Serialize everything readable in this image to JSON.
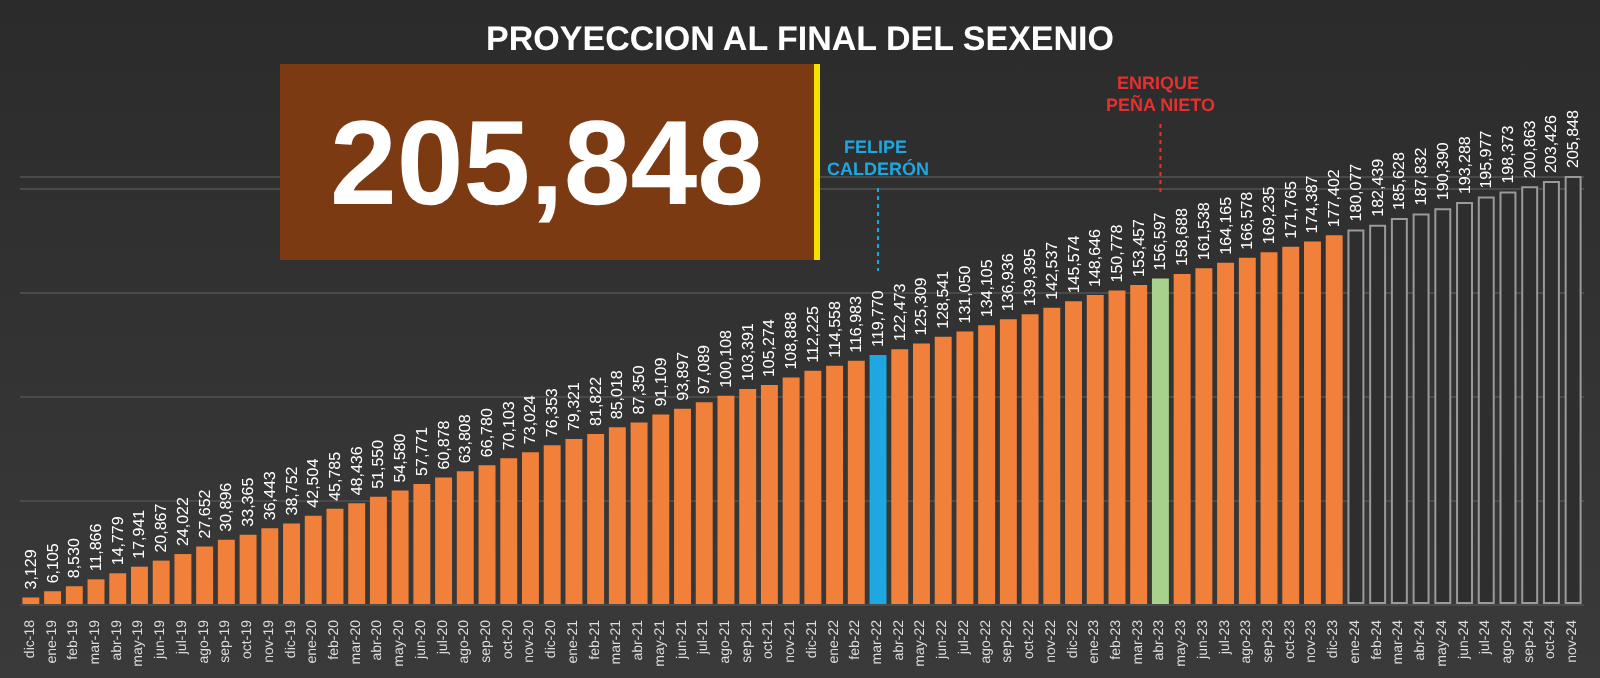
{
  "chart_data": {
    "type": "bar",
    "title": "PROYECCION AL FINAL DEL SEXENIO",
    "categories": [
      "dic-18",
      "ene-19",
      "feb-19",
      "mar-19",
      "abr-19",
      "may-19",
      "jun-19",
      "jul-19",
      "ago-19",
      "sep-19",
      "oct-19",
      "nov-19",
      "dic-19",
      "ene-20",
      "feb-20",
      "mar-20",
      "abr-20",
      "may-20",
      "jun-20",
      "jul-20",
      "ago-20",
      "sep-20",
      "oct-20",
      "nov-20",
      "dic-20",
      "ene-21",
      "feb-21",
      "mar-21",
      "abr-21",
      "may-21",
      "jun-21",
      "jul-21",
      "ago-21",
      "sep-21",
      "oct-21",
      "nov-21",
      "dic-21",
      "ene-22",
      "feb-22",
      "mar-22",
      "abr-22",
      "may-22",
      "jun-22",
      "jul-22",
      "ago-22",
      "sep-22",
      "oct-22",
      "nov-22",
      "dic-22",
      "ene-23",
      "feb-23",
      "mar-23",
      "abr-23",
      "may-23",
      "jun-23",
      "jul-23",
      "ago-23",
      "sep-23",
      "oct-23",
      "nov-23",
      "dic-23",
      "ene-24",
      "feb-24",
      "mar-24",
      "abr-24",
      "may-24",
      "jun-24",
      "jul-24",
      "ago-24",
      "sep-24",
      "oct-24",
      "nov-24"
    ],
    "values": [
      3129,
      6105,
      8530,
      11866,
      14779,
      17941,
      20867,
      24022,
      27652,
      30896,
      33365,
      36443,
      38752,
      42504,
      45785,
      48436,
      51550,
      54580,
      57771,
      60878,
      63808,
      66780,
      70103,
      73024,
      76353,
      79321,
      81822,
      85018,
      87350,
      91109,
      93897,
      97089,
      100108,
      103391,
      105274,
      108888,
      112225,
      114558,
      116983,
      119770,
      122473,
      125309,
      128541,
      131050,
      134105,
      136936,
      139395,
      142537,
      145574,
      148646,
      150778,
      153457,
      156597,
      158688,
      161538,
      164165,
      166578,
      169235,
      171765,
      174387,
      177402,
      180077,
      182439,
      185628,
      187832,
      190390,
      193288,
      195977,
      198373,
      200863,
      203426,
      205848
    ],
    "colors": [
      "#f0803a",
      "#f0803a",
      "#f0803a",
      "#f0803a",
      "#f0803a",
      "#f0803a",
      "#f0803a",
      "#f0803a",
      "#f0803a",
      "#f0803a",
      "#f0803a",
      "#f0803a",
      "#f0803a",
      "#f0803a",
      "#f0803a",
      "#f0803a",
      "#f0803a",
      "#f0803a",
      "#f0803a",
      "#f0803a",
      "#f0803a",
      "#f0803a",
      "#f0803a",
      "#f0803a",
      "#f0803a",
      "#f0803a",
      "#f0803a",
      "#f0803a",
      "#f0803a",
      "#f0803a",
      "#f0803a",
      "#f0803a",
      "#f0803a",
      "#f0803a",
      "#f0803a",
      "#f0803a",
      "#f0803a",
      "#f0803a",
      "#f0803a",
      "#1ea7e1",
      "#f0803a",
      "#f0803a",
      "#f0803a",
      "#f0803a",
      "#f0803a",
      "#f0803a",
      "#f0803a",
      "#f0803a",
      "#f0803a",
      "#f0803a",
      "#f0803a",
      "#f0803a",
      "#a9d18e",
      "#f0803a",
      "#f0803a",
      "#f0803a",
      "#f0803a",
      "#f0803a",
      "#f0803a",
      "#f0803a",
      "#f0803a",
      "#2e2e2e",
      "#2e2e2e",
      "#2e2e2e",
      "#2e2e2e",
      "#2e2e2e",
      "#2e2e2e",
      "#2e2e2e",
      "#2e2e2e",
      "#2e2e2e",
      "#2e2e2e",
      "#2e2e2e"
    ],
    "value_labels": [
      "3,129",
      "6,105",
      "8,530",
      "11,866",
      "14,779",
      "17,941",
      "20,867",
      "24,022",
      "27,652",
      "30,896",
      "33,365",
      "36,443",
      "38,752",
      "42,504",
      "45,785",
      "48,436",
      "51,550",
      "54,580",
      "57,771",
      "60,878",
      "63,808",
      "66,780",
      "70,103",
      "73,024",
      "76,353",
      "79,321",
      "81,822",
      "85,018",
      "87,350",
      "91,109",
      "93,897",
      "97,089",
      "100,108",
      "103,391",
      "105,274",
      "108,888",
      "112,225",
      "114,558",
      "116,983",
      "119,770",
      "122,473",
      "125,309",
      "128,541",
      "131,050",
      "134,105",
      "136,936",
      "139,395",
      "142,537",
      "145,574",
      "148,646",
      "150,778",
      "153,457",
      "156,597",
      "158,688",
      "161,538",
      "164,165",
      "166,578",
      "169,235",
      "171,765",
      "174,387",
      "177,402",
      "180,077",
      "182,439",
      "185,628",
      "187,832",
      "190,390",
      "193,288",
      "195,977",
      "198,373",
      "200,863",
      "203,426",
      "205,848"
    ],
    "tick_labels": "x",
    "grid": "y",
    "annotations": [
      "205,848",
      {
        "text": "FELIPE CALDERÓN",
        "x": "mar-22"
      },
      {
        "text": "ENRIQUE PEÑA NIETO",
        "x": "abr-23"
      }
    ]
  }
}
